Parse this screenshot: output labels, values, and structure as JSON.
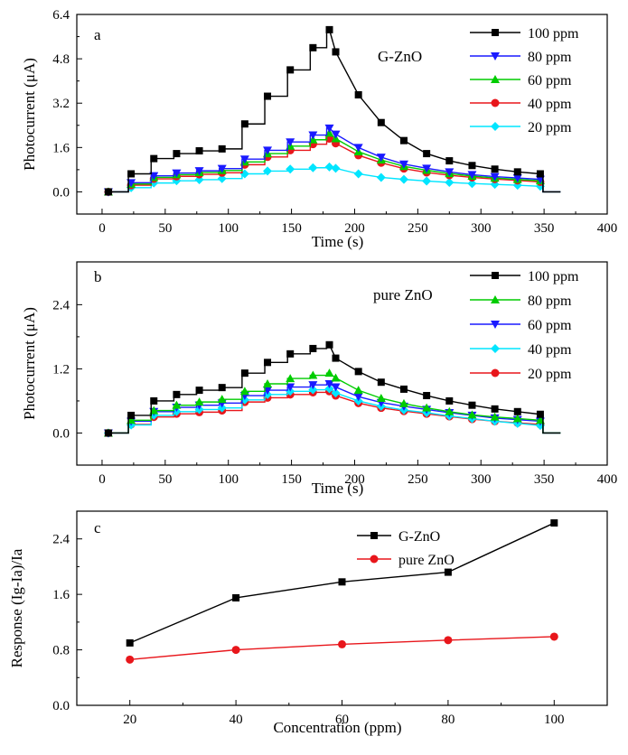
{
  "chart_data": [
    {
      "panel_label": "a",
      "type": "line",
      "annotation": "G-ZnO",
      "xlabel": "Time (s)",
      "ylabel": "Photocurrent (μA)",
      "xlim": [
        -20,
        400
      ],
      "ylim": [
        -0.8,
        6.4
      ],
      "xticks": [
        0,
        50,
        100,
        150,
        200,
        250,
        300,
        350,
        400
      ],
      "xtick_labels": [
        "0",
        "50",
        "100",
        "150",
        "200",
        "250",
        "300",
        "350",
        "400"
      ],
      "yticks": [
        0.0,
        1.6,
        3.2,
        4.8,
        6.4
      ],
      "ytick_labels": [
        "0.0",
        "1.6",
        "3.2",
        "4.8",
        "6.4"
      ],
      "legend_position": "top-right",
      "x": [
        5,
        23,
        41,
        59,
        77,
        95,
        113,
        131,
        149,
        167,
        180,
        185,
        203,
        221,
        239,
        257,
        275,
        293,
        311,
        329,
        347
      ],
      "series": [
        {
          "name": "100 ppm",
          "color": "#000000",
          "marker": "square",
          "values": [
            0.0,
            0.65,
            1.2,
            1.38,
            1.48,
            1.55,
            2.45,
            3.45,
            4.4,
            5.2,
            5.85,
            5.05,
            3.5,
            2.5,
            1.85,
            1.38,
            1.12,
            0.95,
            0.82,
            0.72,
            0.65
          ]
        },
        {
          "name": "80 ppm",
          "color": "#1a1aff",
          "marker": "triangle-down",
          "values": [
            0.0,
            0.33,
            0.58,
            0.68,
            0.76,
            0.84,
            1.18,
            1.5,
            1.8,
            2.05,
            2.3,
            2.08,
            1.6,
            1.25,
            1.0,
            0.85,
            0.72,
            0.62,
            0.55,
            0.5,
            0.45
          ]
        },
        {
          "name": "60 ppm",
          "color": "#00cc00",
          "marker": "triangle-up",
          "values": [
            0.0,
            0.28,
            0.52,
            0.62,
            0.7,
            0.77,
            1.08,
            1.38,
            1.65,
            1.88,
            2.12,
            1.92,
            1.45,
            1.15,
            0.92,
            0.78,
            0.66,
            0.57,
            0.5,
            0.45,
            0.4
          ]
        },
        {
          "name": "40 ppm",
          "color": "#e8161b",
          "marker": "circle",
          "values": [
            0.0,
            0.24,
            0.47,
            0.56,
            0.63,
            0.69,
            0.98,
            1.26,
            1.5,
            1.72,
            1.92,
            1.75,
            1.32,
            1.05,
            0.84,
            0.7,
            0.6,
            0.52,
            0.46,
            0.41,
            0.36
          ]
        },
        {
          "name": "20 ppm",
          "color": "#00e5ff",
          "marker": "diamond",
          "values": [
            0.0,
            0.15,
            0.32,
            0.4,
            0.44,
            0.48,
            0.65,
            0.75,
            0.82,
            0.87,
            0.9,
            0.85,
            0.65,
            0.52,
            0.45,
            0.39,
            0.34,
            0.3,
            0.27,
            0.24,
            0.2
          ]
        }
      ]
    },
    {
      "panel_label": "b",
      "type": "line",
      "annotation": "pure ZnO",
      "xlabel": "Time (s)",
      "ylabel": "Photocurrent (μA)",
      "xlim": [
        -20,
        400
      ],
      "ylim": [
        -0.6,
        3.2
      ],
      "xticks": [
        0,
        50,
        100,
        150,
        200,
        250,
        300,
        350,
        400
      ],
      "xtick_labels": [
        "0",
        "50",
        "100",
        "150",
        "200",
        "250",
        "300",
        "350",
        "400"
      ],
      "yticks": [
        0.0,
        1.2,
        2.4
      ],
      "ytick_labels": [
        "0.0",
        "1.2",
        "2.4"
      ],
      "legend_position": "top-right",
      "x": [
        5,
        23,
        41,
        59,
        77,
        95,
        113,
        131,
        149,
        167,
        180,
        185,
        203,
        221,
        239,
        257,
        275,
        293,
        311,
        329,
        347
      ],
      "series": [
        {
          "name": "100 ppm",
          "color": "#000000",
          "marker": "square",
          "values": [
            0.0,
            0.33,
            0.6,
            0.72,
            0.8,
            0.85,
            1.12,
            1.32,
            1.48,
            1.58,
            1.65,
            1.4,
            1.15,
            0.95,
            0.82,
            0.7,
            0.6,
            0.52,
            0.45,
            0.4,
            0.35
          ]
        },
        {
          "name": "80 ppm",
          "color": "#00cc00",
          "marker": "triangle-up",
          "values": [
            0.0,
            0.24,
            0.42,
            0.52,
            0.58,
            0.63,
            0.78,
            0.92,
            1.02,
            1.08,
            1.12,
            1.03,
            0.8,
            0.65,
            0.55,
            0.47,
            0.4,
            0.34,
            0.3,
            0.27,
            0.24
          ]
        },
        {
          "name": "60 ppm",
          "color": "#1a1aff",
          "marker": "triangle-down",
          "values": [
            0.0,
            0.22,
            0.4,
            0.48,
            0.52,
            0.56,
            0.7,
            0.8,
            0.86,
            0.9,
            0.92,
            0.86,
            0.68,
            0.57,
            0.5,
            0.44,
            0.38,
            0.33,
            0.28,
            0.25,
            0.22
          ]
        },
        {
          "name": "40 ppm",
          "color": "#00e5ff",
          "marker": "diamond",
          "values": [
            0.0,
            0.15,
            0.33,
            0.4,
            0.44,
            0.47,
            0.62,
            0.72,
            0.78,
            0.81,
            0.83,
            0.75,
            0.6,
            0.5,
            0.43,
            0.38,
            0.32,
            0.27,
            0.22,
            0.18,
            0.14
          ]
        },
        {
          "name": "20 ppm",
          "color": "#e8161b",
          "marker": "circle",
          "values": [
            0.0,
            0.16,
            0.3,
            0.36,
            0.39,
            0.42,
            0.58,
            0.66,
            0.72,
            0.76,
            0.78,
            0.7,
            0.56,
            0.47,
            0.41,
            0.36,
            0.31,
            0.26,
            0.22,
            0.19,
            0.16
          ]
        }
      ]
    },
    {
      "panel_label": "c",
      "type": "line",
      "xlabel": "Concentration (ppm)",
      "ylabel": "Response (Ig-Ia)/Ia",
      "xlim": [
        10,
        110
      ],
      "ylim": [
        0.0,
        2.8
      ],
      "xticks": [
        20,
        40,
        60,
        80,
        100
      ],
      "xtick_labels": [
        "20",
        "40",
        "60",
        "80",
        "100"
      ],
      "yticks": [
        0.0,
        0.8,
        1.6,
        2.4
      ],
      "ytick_labels": [
        "0.0",
        "0.8",
        "1.6",
        "2.4"
      ],
      "legend_position": "top-center",
      "x": [
        20,
        40,
        60,
        80,
        100
      ],
      "series": [
        {
          "name": "G-ZnO",
          "color": "#000000",
          "marker": "square",
          "values": [
            0.9,
            1.55,
            1.78,
            1.92,
            2.63
          ]
        },
        {
          "name": "pure ZnO",
          "color": "#e8161b",
          "marker": "circle",
          "values": [
            0.66,
            0.8,
            0.88,
            0.94,
            0.99
          ]
        }
      ]
    }
  ]
}
